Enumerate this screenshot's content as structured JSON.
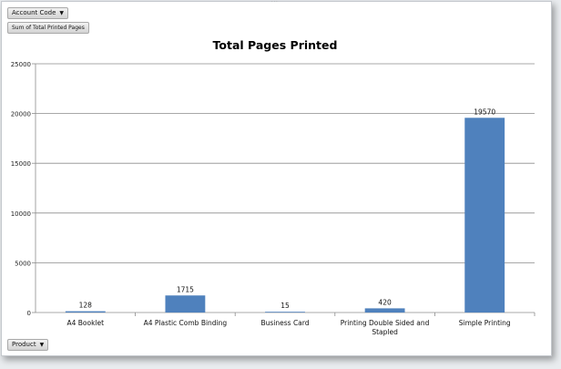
{
  "filters": {
    "account_code_label": "Account Code",
    "values_label": "Sum of Total Printed Pages",
    "axis_field_label": "Product"
  },
  "colors": {
    "bar": "#4f81bd",
    "gridline": "#8c8c8c"
  },
  "icons": {
    "dropdown": "chevron-down-icon"
  },
  "chart_data": {
    "type": "bar",
    "title": "Total Pages Printed",
    "categories": [
      "A4  Booklet",
      "A4 Plastic Comb Binding",
      "Business Card",
      "Printing Double Sided and Stapled",
      "Simple Printing"
    ],
    "values": [
      128,
      1715,
      15,
      420,
      19570
    ],
    "ylim": [
      0,
      25000
    ],
    "yticks": [
      0,
      5000,
      10000,
      15000,
      20000,
      25000
    ],
    "grid": true,
    "legend": "none",
    "xlabel": "",
    "ylabel": ""
  }
}
